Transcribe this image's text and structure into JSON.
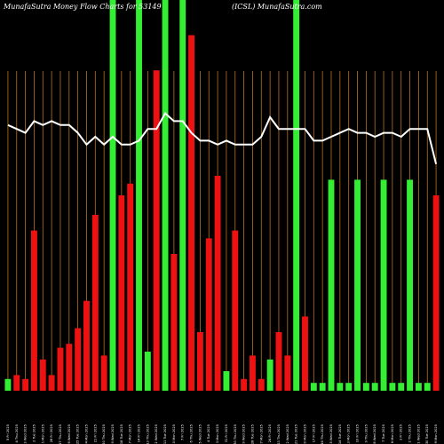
{
  "header": {
    "left": "MunafaSutra  Money Flow  Charts for 53",
    "partial_symbol": "149",
    "right": "(ICSL) MunafaSutra.com"
  },
  "colors": {
    "background": "#000000",
    "up_bar": "#33ee33",
    "down_bar": "#ee1111",
    "grid": "#b8731f",
    "line": "#ffffff",
    "text": "#ffffff"
  },
  "chart_data": {
    "type": "bar",
    "ylim": [
      0,
      100
    ],
    "categories": [
      "5 Fri 2025",
      "4 Thu 2025",
      "3 Wed 2025",
      "2 Tue 2025",
      "1 Mon 2025",
      "28 Fri 2025",
      "27 Thu 2025",
      "26 Wed 2025",
      "25 Tue 2025",
      "24 Mon 2025",
      "21 Fri 2025",
      "20 Thu 2025",
      "19 Wed 2025",
      "18 Tue 2025",
      "17 Mon 2025",
      "14 Fri 2025",
      "13 Thu 2025",
      "12 Wed 2025",
      "11 Tue 2025",
      "10 Mon 2025",
      "7 Fri 2025",
      "6 Thu 2025",
      "5 Wed 2025",
      "4 Tue 2025",
      "3 Mon 2025",
      "31 Fri 2025",
      "30 Thu 2025",
      "29 Wed 2025",
      "28 Tue 2025",
      "27 Mon 2025",
      "24 Fri 2025",
      "23 Thu 2025",
      "22 Wed 2025",
      "21 Tue 2025",
      "20 Mon 2025",
      "17 Fri 2025",
      "16 Thu 2025",
      "15 Wed 2025",
      "14 Tue 2025",
      "13 Mon 2025",
      "10 Fri 2025",
      "9 Thu 2025",
      "8 Wed 2025",
      "7 Tue 2025",
      "6 Mon 2025",
      "3 Fri 2025",
      "2 Thu 2025",
      "1 Wed 2025",
      "30 Tue 2025",
      "29 Mon 2025"
    ],
    "series": [
      {
        "values": [
          3,
          4,
          3,
          41,
          8,
          4,
          11,
          12,
          16,
          23,
          45,
          9,
          100,
          50,
          53,
          100,
          10,
          82,
          100,
          35,
          100,
          91,
          15,
          39,
          55,
          5,
          41,
          3,
          9,
          3,
          8,
          15,
          9,
          100,
          19,
          2,
          2,
          54,
          2,
          2,
          54,
          2,
          2,
          54,
          2,
          2,
          54,
          2,
          2,
          50
        ],
        "direction": [
          "up",
          "down",
          "down",
          "down",
          "down",
          "down",
          "down",
          "down",
          "down",
          "down",
          "down",
          "down",
          "up",
          "down",
          "down",
          "up",
          "up",
          "down",
          "up",
          "down",
          "up",
          "down",
          "down",
          "down",
          "down",
          "up",
          "down",
          "down",
          "down",
          "down",
          "up",
          "down",
          "down",
          "up",
          "down",
          "up",
          "up",
          "up",
          "up",
          "up",
          "up",
          "up",
          "up",
          "up",
          "up",
          "up",
          "up",
          "up",
          "up",
          "down"
        ]
      }
    ],
    "line_values": [
      68,
      67,
      66,
      69,
      68,
      69,
      68,
      68,
      66,
      63,
      65,
      63,
      65,
      63,
      63,
      64,
      67,
      67,
      71,
      69,
      69,
      66,
      64,
      64,
      63,
      64,
      63,
      63,
      63,
      65,
      70,
      67,
      67,
      67,
      67,
      64,
      64,
      65,
      66,
      67,
      66,
      66,
      65,
      66,
      66,
      65,
      67,
      67,
      67,
      58
    ]
  }
}
